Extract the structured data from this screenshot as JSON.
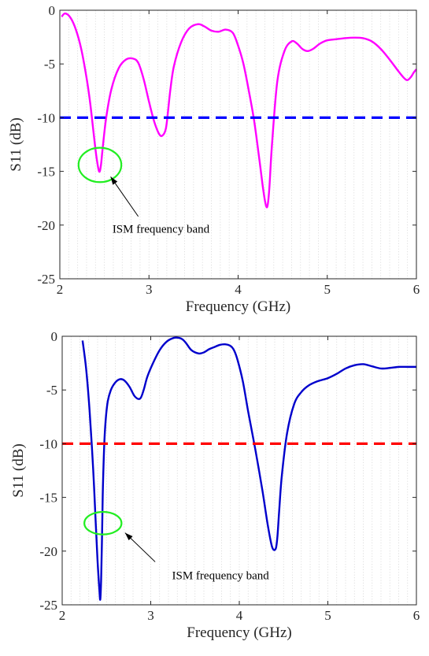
{
  "chart_data": [
    {
      "type": "line",
      "xlabel": "Frequency (GHz)",
      "ylabel": "S11 (dB)",
      "xlim": [
        2,
        6
      ],
      "ylim": [
        -25,
        0
      ],
      "xticks": [
        2,
        3,
        4,
        5,
        6
      ],
      "yticks": [
        0,
        -5,
        -10,
        -15,
        -20,
        -25
      ],
      "grid": "minor-dotted",
      "series": [
        {
          "color": "#ff00ff",
          "x": [
            2.02,
            2.06,
            2.12,
            2.18,
            2.24,
            2.3,
            2.34,
            2.38,
            2.41,
            2.44,
            2.46,
            2.48,
            2.52,
            2.58,
            2.66,
            2.74,
            2.82,
            2.88,
            2.94,
            3.0,
            3.06,
            3.12,
            3.16,
            3.19,
            3.21,
            3.24,
            3.28,
            3.36,
            3.45,
            3.55,
            3.62,
            3.7,
            3.78,
            3.86,
            3.94,
            4.0,
            4.06,
            4.12,
            4.18,
            4.24,
            4.28,
            4.31,
            4.33,
            4.35,
            4.38,
            4.44,
            4.52,
            4.6,
            4.66,
            4.72,
            4.78,
            4.84,
            4.92,
            5.0,
            5.1,
            5.2,
            5.3,
            5.4,
            5.5,
            5.6,
            5.7,
            5.8,
            5.86,
            5.9,
            5.94,
            5.97,
            6.0
          ],
          "y": [
            -0.6,
            -0.3,
            -0.7,
            -1.8,
            -3.6,
            -6.3,
            -8.6,
            -11.5,
            -13.6,
            -15.0,
            -14.5,
            -12.9,
            -10.0,
            -7.3,
            -5.4,
            -4.6,
            -4.5,
            -4.9,
            -6.4,
            -8.5,
            -10.4,
            -11.6,
            -11.6,
            -11.0,
            -9.7,
            -7.4,
            -5.2,
            -3.0,
            -1.7,
            -1.3,
            -1.5,
            -1.9,
            -2.0,
            -1.8,
            -2.1,
            -3.3,
            -5.0,
            -7.5,
            -10.3,
            -14.0,
            -16.6,
            -18.1,
            -18.2,
            -16.6,
            -12.5,
            -6.6,
            -3.8,
            -2.9,
            -3.1,
            -3.6,
            -3.8,
            -3.6,
            -3.1,
            -2.8,
            -2.7,
            -2.6,
            -2.55,
            -2.6,
            -2.9,
            -3.6,
            -4.6,
            -5.7,
            -6.3,
            -6.5,
            -6.2,
            -5.8,
            -5.5
          ]
        },
        {
          "color": "#0000ff",
          "dashed": true,
          "x": [
            2,
            6
          ],
          "y": [
            -10,
            -10
          ]
        }
      ],
      "annotations": [
        {
          "text": "ISM frequency band",
          "arrow_to": [
            2.57,
            -15.5
          ],
          "arrow_from": [
            2.88,
            -19.2
          ],
          "text_at": [
            2.59,
            -20.7
          ],
          "circle_center": [
            2.45,
            -14.4
          ],
          "circle_r": [
            0.24,
            1.6
          ]
        }
      ]
    },
    {
      "type": "line",
      "xlabel": "Frequency (GHz)",
      "ylabel": "S11 (dB)",
      "xlim": [
        2,
        6
      ],
      "ylim": [
        -25,
        0
      ],
      "xticks": [
        2,
        3,
        4,
        5,
        6
      ],
      "yticks": [
        0,
        -5,
        -10,
        -15,
        -20,
        -25
      ],
      "grid": "minor-dotted",
      "series": [
        {
          "color": "#0000cc",
          "x": [
            2.23,
            2.27,
            2.31,
            2.35,
            2.38,
            2.4,
            2.42,
            2.43,
            2.44,
            2.45,
            2.46,
            2.48,
            2.51,
            2.55,
            2.6,
            2.65,
            2.7,
            2.76,
            2.82,
            2.88,
            2.92,
            2.96,
            3.02,
            3.1,
            3.18,
            3.26,
            3.32,
            3.36,
            3.4,
            3.46,
            3.54,
            3.6,
            3.66,
            3.72,
            3.78,
            3.84,
            3.9,
            3.94,
            3.98,
            4.04,
            4.1,
            4.18,
            4.26,
            4.32,
            4.37,
            4.41,
            4.43,
            4.45,
            4.48,
            4.54,
            4.62,
            4.7,
            4.78,
            4.88,
            5.0,
            5.1,
            5.2,
            5.3,
            5.4,
            5.5,
            5.6,
            5.7,
            5.8,
            5.9,
            6.0
          ],
          "y": [
            -0.4,
            -3.0,
            -7.0,
            -12.4,
            -17.6,
            -21.0,
            -23.6,
            -24.5,
            -22.6,
            -18.6,
            -14.0,
            -9.2,
            -6.3,
            -5.0,
            -4.3,
            -4.0,
            -4.1,
            -4.7,
            -5.6,
            -5.8,
            -5.0,
            -3.8,
            -2.6,
            -1.3,
            -0.5,
            -0.15,
            -0.15,
            -0.3,
            -0.65,
            -1.3,
            -1.6,
            -1.5,
            -1.2,
            -1.0,
            -0.8,
            -0.75,
            -0.9,
            -1.3,
            -2.2,
            -4.2,
            -7.0,
            -10.5,
            -14.3,
            -17.5,
            -19.6,
            -19.8,
            -18.7,
            -16.3,
            -13.0,
            -9.0,
            -6.3,
            -5.2,
            -4.6,
            -4.2,
            -3.9,
            -3.5,
            -3.0,
            -2.7,
            -2.6,
            -2.8,
            -3.0,
            -2.95,
            -2.85,
            -2.85,
            -2.85
          ]
        },
        {
          "color": "#ff0000",
          "dashed": true,
          "x": [
            2,
            6
          ],
          "y": [
            -10,
            -10
          ]
        }
      ],
      "annotations": [
        {
          "text": "ISM frequency band",
          "arrow_to": [
            2.71,
            -18.3
          ],
          "arrow_from": [
            3.05,
            -21.0
          ],
          "text_at": [
            3.24,
            -22.6
          ],
          "circle_center": [
            2.46,
            -17.4
          ],
          "circle_r": [
            0.21,
            1.05
          ]
        }
      ]
    }
  ]
}
